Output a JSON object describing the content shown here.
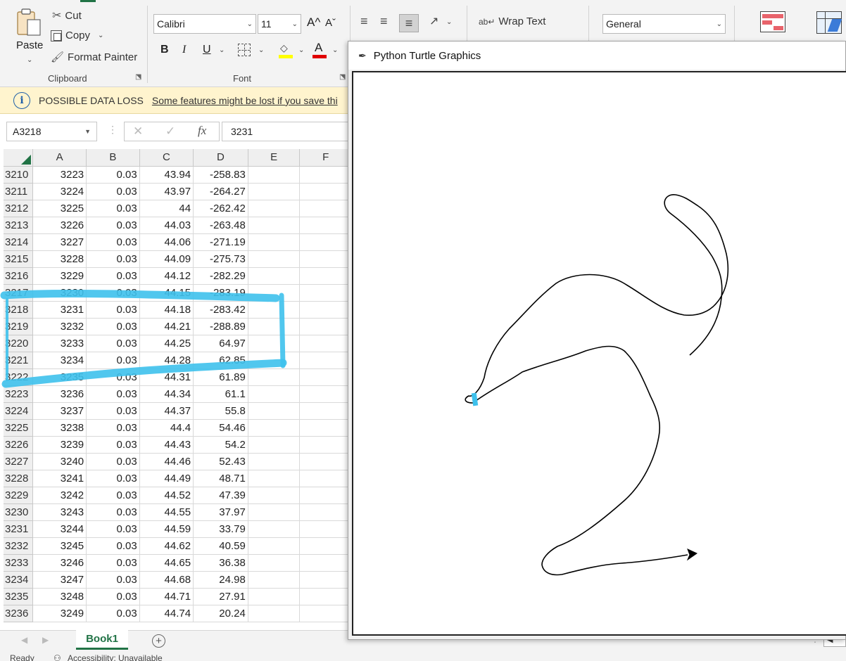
{
  "ribbon": {
    "clipboard": {
      "paste": "Paste",
      "cut": "Cut",
      "copy": "Copy",
      "format_painter": "Format Painter",
      "label": "Clipboard"
    },
    "font": {
      "family": "Calibri",
      "size": "11",
      "bold": "B",
      "italic": "I",
      "underline": "U",
      "grow": "A^",
      "shrink": "Aˇ",
      "color_letter": "A",
      "label": "Font"
    },
    "alignment": {
      "wrap_text": "Wrap Text"
    },
    "number": {
      "format": "General"
    }
  },
  "warning": {
    "title": "POSSIBLE DATA LOSS",
    "message": "Some features might be lost if you save thi"
  },
  "formula_bar": {
    "name_box": "A3218",
    "fx": "fx",
    "value": "3231"
  },
  "grid": {
    "columns": [
      "A",
      "B",
      "C",
      "D",
      "E",
      "F"
    ],
    "rows": [
      {
        "r": "3210",
        "a": "3223",
        "b": "0.03",
        "c": "43.94",
        "d": "-258.83"
      },
      {
        "r": "3211",
        "a": "3224",
        "b": "0.03",
        "c": "43.97",
        "d": "-264.27"
      },
      {
        "r": "3212",
        "a": "3225",
        "b": "0.03",
        "c": "44",
        "d": "-262.42"
      },
      {
        "r": "3213",
        "a": "3226",
        "b": "0.03",
        "c": "44.03",
        "d": "-263.48"
      },
      {
        "r": "3214",
        "a": "3227",
        "b": "0.03",
        "c": "44.06",
        "d": "-271.19"
      },
      {
        "r": "3215",
        "a": "3228",
        "b": "0.03",
        "c": "44.09",
        "d": "-275.73"
      },
      {
        "r": "3216",
        "a": "3229",
        "b": "0.03",
        "c": "44.12",
        "d": "-282.29"
      },
      {
        "r": "3217",
        "a": "3230",
        "b": "0.03",
        "c": "44.15",
        "d": "-283.19"
      },
      {
        "r": "3218",
        "a": "3231",
        "b": "0.03",
        "c": "44.18",
        "d": "-283.42"
      },
      {
        "r": "3219",
        "a": "3232",
        "b": "0.03",
        "c": "44.21",
        "d": "-288.89"
      },
      {
        "r": "3220",
        "a": "3233",
        "b": "0.03",
        "c": "44.25",
        "d": "64.97"
      },
      {
        "r": "3221",
        "a": "3234",
        "b": "0.03",
        "c": "44.28",
        "d": "62.85"
      },
      {
        "r": "3222",
        "a": "3235",
        "b": "0.03",
        "c": "44.31",
        "d": "61.89"
      },
      {
        "r": "3223",
        "a": "3236",
        "b": "0.03",
        "c": "44.34",
        "d": "61.1"
      },
      {
        "r": "3224",
        "a": "3237",
        "b": "0.03",
        "c": "44.37",
        "d": "55.8"
      },
      {
        "r": "3225",
        "a": "3238",
        "b": "0.03",
        "c": "44.4",
        "d": "54.46"
      },
      {
        "r": "3226",
        "a": "3239",
        "b": "0.03",
        "c": "44.43",
        "d": "54.2"
      },
      {
        "r": "3227",
        "a": "3240",
        "b": "0.03",
        "c": "44.46",
        "d": "52.43"
      },
      {
        "r": "3228",
        "a": "3241",
        "b": "0.03",
        "c": "44.49",
        "d": "48.71"
      },
      {
        "r": "3229",
        "a": "3242",
        "b": "0.03",
        "c": "44.52",
        "d": "47.39"
      },
      {
        "r": "3230",
        "a": "3243",
        "b": "0.03",
        "c": "44.55",
        "d": "37.97"
      },
      {
        "r": "3231",
        "a": "3244",
        "b": "0.03",
        "c": "44.59",
        "d": "33.79"
      },
      {
        "r": "3232",
        "a": "3245",
        "b": "0.03",
        "c": "44.62",
        "d": "40.59"
      },
      {
        "r": "3233",
        "a": "3246",
        "b": "0.03",
        "c": "44.65",
        "d": "36.38"
      },
      {
        "r": "3234",
        "a": "3247",
        "b": "0.03",
        "c": "44.68",
        "d": "24.98"
      },
      {
        "r": "3235",
        "a": "3248",
        "b": "0.03",
        "c": "44.71",
        "d": "27.91"
      },
      {
        "r": "3236",
        "a": "3249",
        "b": "0.03",
        "c": "44.74",
        "d": "20.24"
      }
    ]
  },
  "sheets": {
    "active": "Book1"
  },
  "status": {
    "ready": "Ready",
    "accessibility": "Accessibility: Unavailable"
  },
  "turtle": {
    "title": "Python Turtle Graphics"
  },
  "colors": {
    "highlight": "#3ec1ec",
    "excel_green": "#217346",
    "warning_bg": "#fff4ce"
  }
}
